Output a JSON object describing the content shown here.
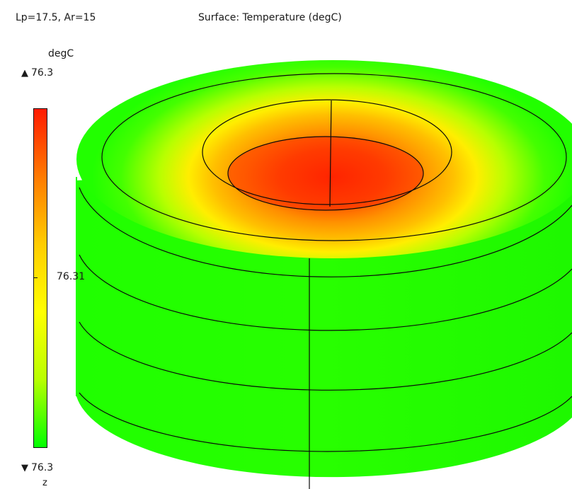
{
  "header": {
    "parameters": "Lp=17.5, Ar=15",
    "plot_title": "Surface: Temperature (degC)"
  },
  "colorbar": {
    "unit": "degC",
    "max_label": "76.3",
    "mid_label": "76.31",
    "min_label": "76.3",
    "max_marker": "▲",
    "min_marker": "▼",
    "gradient_colors": [
      "#ff1a00",
      "#ff7a00",
      "#ffcc00",
      "#ffff00",
      "#b8ff00",
      "#00ff00"
    ]
  },
  "axis": {
    "label": "z"
  },
  "model": {
    "surface_colors": {
      "hot": "#ff2a00",
      "warm": "#ff9a00",
      "mid": "#ffe000",
      "cool": "#33ff00",
      "cold": "#1aff00"
    },
    "edge_color": "#0a0a0a"
  }
}
